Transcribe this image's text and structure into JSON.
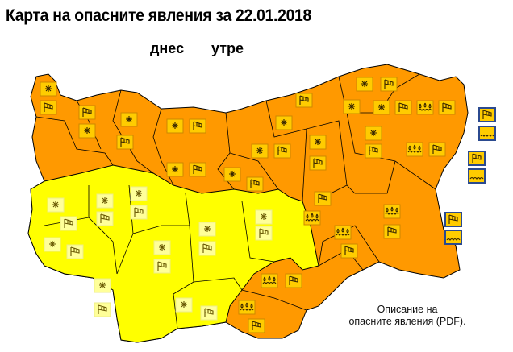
{
  "title": "Карта на опасните явления за 22.01.2018",
  "days": {
    "today": "днес",
    "tomorrow": "утре"
  },
  "description": {
    "line1": "Описание на",
    "line2": "опасните явления (PDF)."
  },
  "colors": {
    "orange_warning": "#FF9900",
    "yellow_warning": "#FFFF00",
    "border": "#000000",
    "sea_box_border": "#2B4A8F"
  },
  "warnings": {
    "orange_regions": [
      [
        "snow",
        "wind"
      ],
      [
        "wind",
        "snow"
      ],
      [
        "snow",
        "wind"
      ],
      [
        "snow",
        "wind"
      ],
      [
        "snow",
        "wind"
      ],
      [
        "snow",
        "wind"
      ],
      [
        "snow",
        "wind"
      ],
      [
        "snow"
      ],
      [
        "wind"
      ],
      [
        "snow",
        "wind"
      ],
      [
        "snow"
      ],
      [
        "snow",
        "wind"
      ],
      [
        "snow",
        "wind"
      ],
      [
        "snow",
        "wind"
      ],
      [
        "rain-waves",
        "wind"
      ],
      [
        "rain-waves",
        "wind"
      ],
      [
        "wind",
        "rain-waves"
      ],
      [
        "rain-waves",
        "wind"
      ],
      [
        "rain-waves",
        "wind"
      ],
      [
        "rain-waves",
        "wind"
      ],
      [
        "rain-waves",
        "wind"
      ]
    ],
    "yellow_regions": [
      [
        "snow",
        "wind"
      ],
      [
        "snow",
        "wind"
      ],
      [
        "snow",
        "wind"
      ],
      [
        "snow",
        "wind"
      ],
      [
        "snow",
        "wind"
      ],
      [
        "snow",
        "wind"
      ],
      [
        "snow",
        "wind"
      ],
      [
        "snow",
        "wind"
      ],
      [
        "snow",
        "wind"
      ]
    ],
    "sea_zones": [
      [
        "wind",
        "sea-waves"
      ],
      [
        "wind",
        "sea-waves"
      ],
      [
        "wind",
        "sea-waves"
      ]
    ]
  }
}
